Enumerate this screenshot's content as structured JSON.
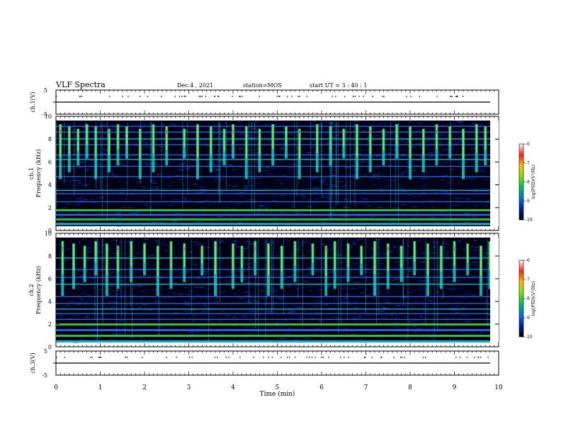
{
  "header": {
    "title": "VLF Spectra",
    "date": "Dec.4 , 2021",
    "station": "station=MOS",
    "start_ut": "start UT =  3 : 40 : 1"
  },
  "chart_data": [
    {
      "id": "ch1-waveform",
      "type": "line",
      "ylabel": "ch.1(V)",
      "ylim": [
        -5,
        5
      ],
      "y_ticks": [
        "5",
        "-5"
      ],
      "series_level": 0
    },
    {
      "id": "ch1-spectrogram",
      "type": "heatmap",
      "ylabel_top": "ch.1",
      "ylabel": "Frequency (kHz)",
      "ylim": [
        0,
        10
      ],
      "y_ticks": [
        "0",
        "2",
        "4",
        "6",
        "8",
        "10"
      ],
      "colorbar": {
        "label": "log(PSD)(V²/Hz)",
        "range": [
          -10,
          -6
        ],
        "ticks": [
          "-6",
          "-7",
          "-8",
          "-9",
          "-10"
        ]
      },
      "bands_khz": [
        0.6,
        1.0,
        1.4,
        1.8,
        2.5,
        3.2,
        3.5,
        4.7,
        5.6,
        6.2,
        6.6,
        7.5,
        8.0,
        8.6,
        9.1
      ],
      "burst_times_min": [
        0.1,
        0.3,
        0.5,
        0.7,
        0.9,
        1.2,
        1.4,
        1.6,
        1.9,
        2.2,
        2.5,
        2.9,
        3.2,
        3.5,
        3.8,
        4.0,
        4.3,
        4.6,
        4.9,
        5.2,
        5.5,
        5.9,
        6.2,
        6.5,
        6.8,
        7.1,
        7.4,
        7.7,
        8.0,
        8.3,
        8.6,
        8.9,
        9.2,
        9.5,
        9.7
      ]
    },
    {
      "id": "ch2-spectrogram",
      "type": "heatmap",
      "ylabel_top": "ch.2",
      "ylabel": "Frequency (kHz)",
      "ylim": [
        0,
        10
      ],
      "y_ticks": [
        "0",
        "2",
        "4",
        "6",
        "8",
        "10"
      ],
      "colorbar": {
        "label": "log(PSD)(V²/Hz)",
        "range": [
          -10,
          -6
        ],
        "ticks": [
          "-6",
          "-7",
          "-8",
          "-9",
          "-10"
        ]
      },
      "bands_khz": [
        0.5,
        1.0,
        1.5,
        2.0,
        2.4,
        2.9,
        3.3,
        3.8,
        4.4,
        5.5,
        6.1,
        6.8,
        7.8
      ],
      "burst_times_min": [
        0.15,
        0.4,
        0.65,
        0.9,
        1.15,
        1.4,
        1.7,
        2.0,
        2.3,
        2.6,
        2.9,
        3.3,
        3.6,
        4.0,
        4.2,
        4.5,
        4.8,
        5.1,
        5.4,
        5.8,
        6.1,
        6.3,
        6.6,
        6.9,
        7.2,
        7.5,
        7.8,
        8.1,
        8.4,
        8.7,
        9.0,
        9.3,
        9.6,
        9.8
      ]
    },
    {
      "id": "ch3-waveform",
      "type": "line",
      "ylabel": "ch.3(V)",
      "ylim": [
        -5,
        5
      ],
      "y_ticks": [
        "5",
        "-5"
      ],
      "series_level": 0
    }
  ],
  "x_axis": {
    "label": "Time (min)",
    "range": [
      0,
      10
    ],
    "ticks": [
      "0",
      "1",
      "2",
      "3",
      "4",
      "5",
      "6",
      "7",
      "8",
      "9",
      "10"
    ]
  }
}
